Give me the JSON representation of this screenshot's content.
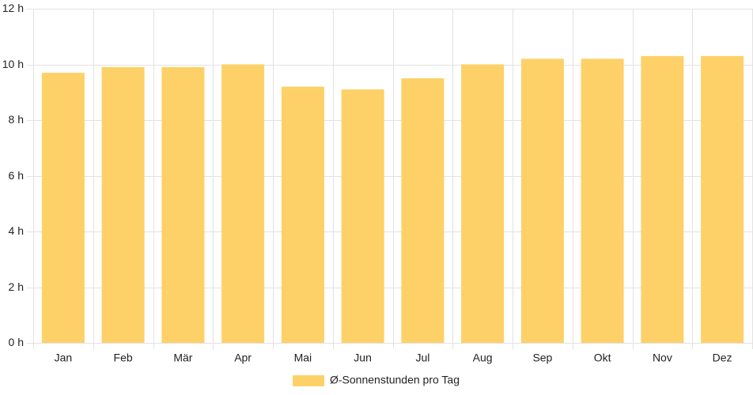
{
  "chart_data": {
    "type": "bar",
    "categories": [
      "Jan",
      "Feb",
      "Mär",
      "Apr",
      "Mai",
      "Jun",
      "Jul",
      "Aug",
      "Sep",
      "Okt",
      "Nov",
      "Dez"
    ],
    "series": [
      {
        "name": "Ø-Sonnenstunden pro Tag",
        "values": [
          9.7,
          9.9,
          9.9,
          10.0,
          9.2,
          9.1,
          9.5,
          10.0,
          10.2,
          10.2,
          10.3,
          10.3
        ]
      }
    ],
    "y_ticks": [
      "0 h",
      "2 h",
      "4 h",
      "6 h",
      "8 h",
      "10 h",
      "12 h"
    ],
    "ylim": [
      0,
      12
    ],
    "grid": true,
    "legend_position": "bottom",
    "colors": {
      "bar": "#fdd167",
      "grid": "#e2e2e2",
      "axis_text": "#222222"
    }
  }
}
